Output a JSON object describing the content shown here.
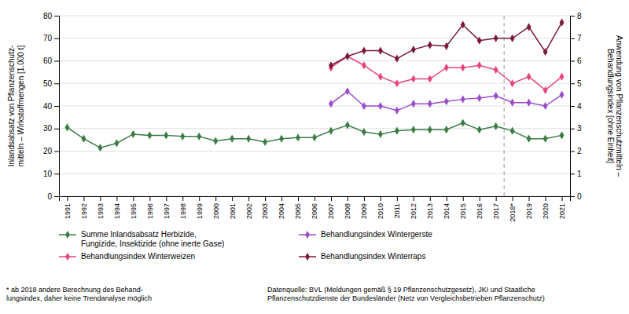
{
  "chart_data": {
    "type": "line",
    "ylabel": "Inlandsabsatz von Pflanzenschutz-\nmitteln – Wirkstoffmengen [1.000 t]",
    "y2label": "Anwendung von Pflanzenschutzmitteln –\nBehandlungsindex [ohne Einheit]",
    "xlim": [
      1990.5,
      2021.5
    ],
    "xticks": [
      1991,
      1992,
      1993,
      1994,
      1995,
      1996,
      1997,
      1998,
      1999,
      2000,
      2001,
      2002,
      2003,
      2004,
      2005,
      2006,
      2007,
      2008,
      2009,
      2010,
      2011,
      2012,
      2013,
      2014,
      2015,
      2016,
      2017,
      {
        "value": 2018,
        "label": "2018*"
      },
      2019,
      2020,
      2021
    ],
    "ylim": [
      0,
      80
    ],
    "yticks": [
      0,
      10,
      20,
      30,
      40,
      50,
      60,
      70,
      80
    ],
    "y2lim": [
      0,
      8
    ],
    "y2ticks": [
      0,
      1,
      2,
      3,
      4,
      5,
      6,
      7,
      8
    ],
    "grid": true,
    "legend": "bottom",
    "series": [
      {
        "name": "Summe Inlandsabsatz Herbizide,\nFungizide, Insektizide (ohne inerte Gase)",
        "color": "#3a7d44",
        "marker": "diamond",
        "axis": "y",
        "x": [
          1991,
          1992,
          1993,
          1994,
          1995,
          1996,
          1997,
          1998,
          1999,
          2000,
          2001,
          2002,
          2003,
          2004,
          2005,
          2006,
          2007,
          2008,
          2009,
          2010,
          2011,
          2012,
          2013,
          2014,
          2015,
          2016,
          2017,
          2018,
          2019,
          2020,
          2021
        ],
        "values": [
          30.5,
          25.5,
          21.5,
          23.5,
          27.5,
          27.0,
          27.0,
          26.5,
          26.5,
          24.5,
          25.5,
          25.5,
          24.0,
          25.5,
          26.0,
          26.0,
          29.0,
          31.5,
          28.5,
          27.5,
          29.0,
          29.5,
          29.5,
          29.5,
          32.5,
          29.5,
          31.0,
          29.0,
          25.5,
          25.5,
          27.0
        ]
      },
      {
        "name": "Behandlungsindex Winterweizen",
        "color": "#e8457a",
        "marker": "diamond",
        "axis": "y2",
        "x": [
          2007,
          2008,
          2009,
          2010,
          2011,
          2012,
          2013,
          2014,
          2015,
          2016,
          2017,
          2018,
          2019,
          2020,
          2021
        ],
        "values": [
          5.7,
          6.2,
          5.8,
          5.3,
          5.0,
          5.2,
          5.2,
          5.7,
          5.7,
          5.8,
          5.6,
          5.0,
          5.3,
          4.7,
          5.3
        ]
      },
      {
        "name": "Behandlungsindex Wintergerste",
        "color": "#9b4dca",
        "marker": "diamond",
        "axis": "y2",
        "x": [
          2007,
          2008,
          2009,
          2010,
          2011,
          2012,
          2013,
          2014,
          2015,
          2016,
          2017,
          2018,
          2019,
          2020,
          2021
        ],
        "values": [
          4.1,
          4.65,
          4.0,
          4.0,
          3.8,
          4.1,
          4.1,
          4.2,
          4.3,
          4.35,
          4.45,
          4.15,
          4.15,
          4.0,
          4.5
        ]
      },
      {
        "name": "Behandlungsindex Winterraps",
        "color": "#7b1a3a",
        "marker": "diamond",
        "axis": "y2",
        "x": [
          2007,
          2008,
          2009,
          2010,
          2011,
          2012,
          2013,
          2014,
          2015,
          2016,
          2017,
          2018,
          2019,
          2020,
          2021
        ],
        "values": [
          5.8,
          6.2,
          6.45,
          6.45,
          6.1,
          6.5,
          6.7,
          6.65,
          7.6,
          6.9,
          7.0,
          7.0,
          7.5,
          6.4,
          7.7
        ]
      }
    ],
    "annotations": [
      {
        "x": 2017.5,
        "line_style": "dashed",
        "color": "#999999"
      }
    ],
    "footnote": "* ab 2018 andere Berechnung des Behand-\nlungsindex, daher keine Trendanalyse möglich",
    "source": "Datenquelle: BVL (Meldungen gemäß § 19 Pflanzenschutzgesetz), JKI und Staatliche\nPflanzenschutzdienste der Bundesländer (Netz von Vergleichsbetrieben Pflanzenschutz)"
  }
}
